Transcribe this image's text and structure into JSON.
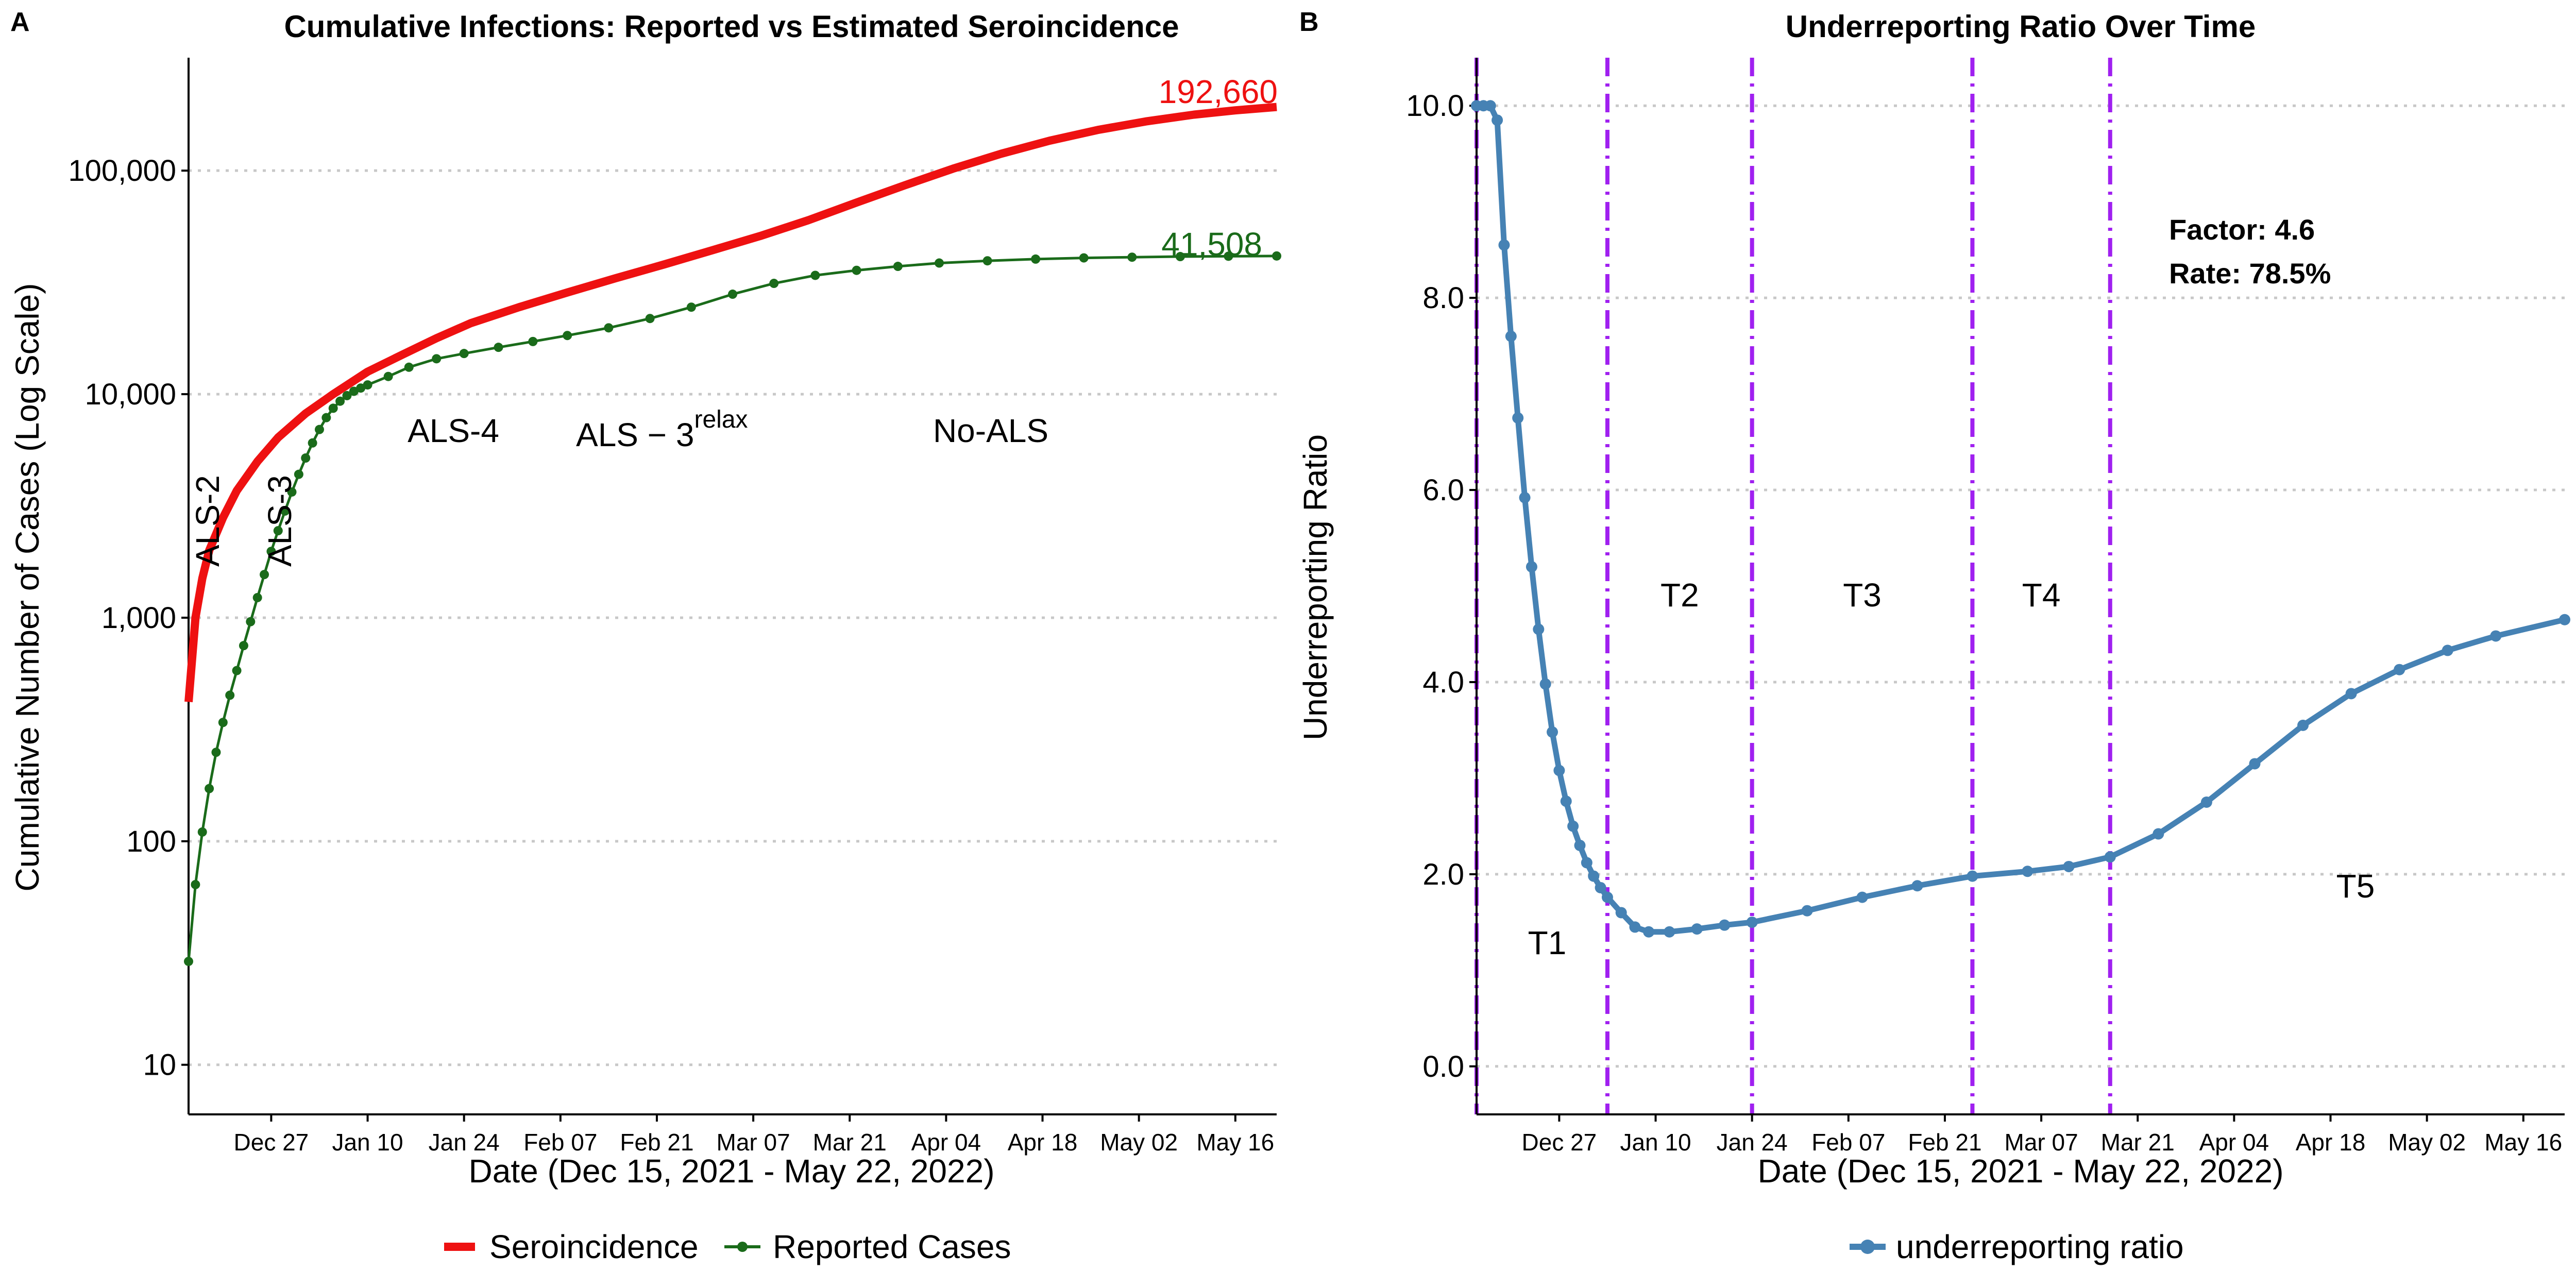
{
  "chart_data": [
    {
      "panel": "A",
      "type": "line",
      "title": "Cumulative Infections: Reported vs Estimated Seroincidence",
      "xlabel": "Date (Dec 15, 2021 - May 22, 2022)",
      "ylabel": "Cumulative Number of Cases (Log Scale)",
      "yscale": "log",
      "ylim": [
        6,
        320000
      ],
      "xlim": [
        "2021-12-15",
        "2022-05-22"
      ],
      "yticks": [
        10,
        100,
        1000,
        10000,
        100000
      ],
      "ytick_labels": [
        "10",
        "100",
        "1,000",
        "10,000",
        "100,000"
      ],
      "xticks": [
        "2021-12-27",
        "2022-01-10",
        "2022-01-24",
        "2022-02-07",
        "2022-02-21",
        "2022-03-07",
        "2022-03-21",
        "2022-04-04",
        "2022-04-18",
        "2022-05-02",
        "2022-05-16"
      ],
      "xtick_labels": [
        "Dec 27",
        "Jan 10",
        "Jan 24",
        "Feb 07",
        "Feb 21",
        "Mar 07",
        "Mar 21",
        "Apr 04",
        "Apr 18",
        "May 02",
        "May 16"
      ],
      "grid": "horizontal dotted",
      "legend_position": "bottom",
      "series": [
        {
          "name": "Seroincidence",
          "color": "#ee1111",
          "markers": false,
          "x": [
            "2021-12-15",
            "2021-12-16",
            "2021-12-17",
            "2021-12-18",
            "2021-12-20",
            "2021-12-22",
            "2021-12-25",
            "2021-12-28",
            "2022-01-01",
            "2022-01-05",
            "2022-01-10",
            "2022-01-15",
            "2022-01-20",
            "2022-01-25",
            "2022-02-01",
            "2022-02-08",
            "2022-02-15",
            "2022-02-22",
            "2022-03-01",
            "2022-03-08",
            "2022-03-15",
            "2022-03-22",
            "2022-03-29",
            "2022-04-05",
            "2022-04-12",
            "2022-04-19",
            "2022-04-26",
            "2022-05-03",
            "2022-05-10",
            "2022-05-16",
            "2022-05-22"
          ],
          "y": [
            420,
            1000,
            1500,
            2000,
            2800,
            3700,
            5000,
            6400,
            8200,
            10000,
            12600,
            15000,
            17800,
            20800,
            24500,
            28500,
            33000,
            38000,
            44000,
            51000,
            60000,
            72000,
            86000,
            102000,
            119000,
            136000,
            152000,
            166000,
            178000,
            186000,
            192660
          ]
        },
        {
          "name": "Reported Cases",
          "color": "#1a6b1a",
          "markers": true,
          "x": [
            "2021-12-15",
            "2021-12-16",
            "2021-12-17",
            "2021-12-18",
            "2021-12-19",
            "2021-12-20",
            "2021-12-21",
            "2021-12-22",
            "2021-12-23",
            "2021-12-24",
            "2021-12-25",
            "2021-12-26",
            "2021-12-27",
            "2021-12-28",
            "2021-12-29",
            "2021-12-30",
            "2021-12-31",
            "2022-01-01",
            "2022-01-02",
            "2022-01-03",
            "2022-01-04",
            "2022-01-05",
            "2022-01-06",
            "2022-01-07",
            "2022-01-08",
            "2022-01-09",
            "2022-01-10",
            "2022-01-13",
            "2022-01-16",
            "2022-01-20",
            "2022-01-24",
            "2022-01-29",
            "2022-02-03",
            "2022-02-08",
            "2022-02-14",
            "2022-02-20",
            "2022-02-26",
            "2022-03-04",
            "2022-03-10",
            "2022-03-16",
            "2022-03-22",
            "2022-03-28",
            "2022-04-03",
            "2022-04-10",
            "2022-04-17",
            "2022-04-24",
            "2022-05-01",
            "2022-05-08",
            "2022-05-15",
            "2022-05-22"
          ],
          "y": [
            29,
            64,
            110,
            172,
            250,
            340,
            450,
            580,
            750,
            960,
            1230,
            1560,
            1980,
            2450,
            3000,
            3650,
            4380,
            5180,
            6050,
            6950,
            7850,
            8650,
            9300,
            9850,
            10300,
            10650,
            11000,
            12000,
            13200,
            14400,
            15200,
            16200,
            17200,
            18300,
            19800,
            21800,
            24500,
            28000,
            31300,
            34000,
            35800,
            37300,
            38600,
            39500,
            40200,
            40700,
            41000,
            41250,
            41400,
            41508
          ]
        }
      ],
      "annotations": [
        {
          "text": "ALS-2",
          "rotated": true
        },
        {
          "text": "ALS-3",
          "rotated": true
        },
        {
          "text": "ALS-4"
        },
        {
          "text": "ALS − 3",
          "superscript": "relax"
        },
        {
          "text": "No-ALS"
        },
        {
          "text": "192,660",
          "color": "#ee1111"
        },
        {
          "text": "41,508",
          "color": "#1a6b1a"
        }
      ]
    },
    {
      "panel": "B",
      "type": "line",
      "title": "Underreporting Ratio Over Time",
      "xlabel": "Date (Dec 15, 2021 - May 22, 2022)",
      "ylabel": "Underreporting Ratio",
      "ylim": [
        -0.5,
        10.5
      ],
      "xlim": [
        "2021-12-15",
        "2022-05-22"
      ],
      "yticks": [
        0,
        2,
        4,
        6,
        8,
        10
      ],
      "ytick_labels": [
        "0.0",
        "2.0",
        "4.0",
        "6.0",
        "8.0",
        "10.0"
      ],
      "xticks": [
        "2021-12-27",
        "2022-01-10",
        "2022-01-24",
        "2022-02-07",
        "2022-02-21",
        "2022-03-07",
        "2022-03-21",
        "2022-04-04",
        "2022-04-18",
        "2022-05-02",
        "2022-05-16"
      ],
      "xtick_labels": [
        "Dec 27",
        "Jan 10",
        "Jan 24",
        "Feb 07",
        "Feb 21",
        "Mar 07",
        "Mar 21",
        "Apr 04",
        "Apr 18",
        "May 02",
        "May 16"
      ],
      "grid": "horizontal dotted",
      "legend_position": "bottom",
      "period_lines": [
        "2021-12-15",
        "2022-01-03",
        "2022-01-24",
        "2022-02-25",
        "2022-03-17"
      ],
      "period_line_color": "#a020f0",
      "period_labels": [
        "T1",
        "T2",
        "T3",
        "T4",
        "T5"
      ],
      "series": [
        {
          "name": "underreporting ratio",
          "color": "#4682b4",
          "markers": true,
          "x": [
            "2021-12-15",
            "2021-12-16",
            "2021-12-17",
            "2021-12-18",
            "2021-12-19",
            "2021-12-20",
            "2021-12-21",
            "2021-12-22",
            "2021-12-23",
            "2021-12-24",
            "2021-12-25",
            "2021-12-26",
            "2021-12-27",
            "2021-12-28",
            "2021-12-29",
            "2021-12-30",
            "2021-12-31",
            "2022-01-01",
            "2022-01-02",
            "2022-01-03",
            "2022-01-05",
            "2022-01-07",
            "2022-01-09",
            "2022-01-12",
            "2022-01-16",
            "2022-01-20",
            "2022-01-24",
            "2022-02-01",
            "2022-02-09",
            "2022-02-17",
            "2022-02-25",
            "2022-03-05",
            "2022-03-11",
            "2022-03-17",
            "2022-03-24",
            "2022-03-31",
            "2022-04-07",
            "2022-04-14",
            "2022-04-21",
            "2022-04-28",
            "2022-05-05",
            "2022-05-12",
            "2022-05-22"
          ],
          "y": [
            10.0,
            10.0,
            10.0,
            9.85,
            8.55,
            7.6,
            6.75,
            5.92,
            5.2,
            4.55,
            3.98,
            3.48,
            3.08,
            2.76,
            2.5,
            2.3,
            2.12,
            1.98,
            1.86,
            1.76,
            1.6,
            1.45,
            1.4,
            1.4,
            1.43,
            1.47,
            1.5,
            1.62,
            1.76,
            1.88,
            1.98,
            2.03,
            2.08,
            2.18,
            2.42,
            2.75,
            3.15,
            3.55,
            3.88,
            4.13,
            4.33,
            4.48,
            4.65
          ]
        }
      ],
      "annotations": [
        {
          "text": "Factor: 4.6"
        },
        {
          "text": "Rate: 78.5%"
        }
      ]
    }
  ]
}
